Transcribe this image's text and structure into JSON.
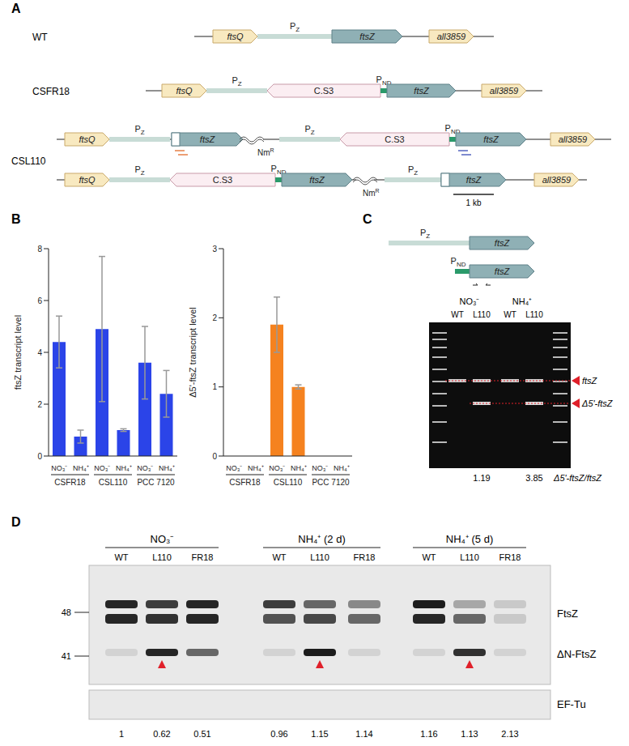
{
  "panels": {
    "A": {
      "label": "A",
      "rows": [
        "WT",
        "CSFR18",
        "CSL110"
      ],
      "genes": {
        "ftsQ": "ftsQ",
        "ftsZ": "ftsZ",
        "all3859": "all3859",
        "cs3": "C.S3",
        "nm": "Nm",
        "nm_sup": "R"
      },
      "promoters": {
        "p": "P",
        "pz_sub": "Z",
        "pnd_sub": "ND"
      },
      "scale": "1 kb"
    },
    "B": {
      "label": "B"
    },
    "C": {
      "label": "C",
      "gene": "ftsZ",
      "promoters": {
        "p": "P",
        "pz_sub": "Z",
        "pnd_sub": "ND"
      },
      "conditions": [
        "NO₃⁻",
        "NH₄⁺"
      ],
      "lanes": [
        "WT",
        "L110",
        "WT",
        "L110"
      ],
      "bands": [
        "ftsZ",
        "Δ5'-ftsZ"
      ],
      "ratios": [
        1.19,
        3.85
      ],
      "ratio_label": "Δ5'-ftsZ/ftsZ"
    },
    "D": {
      "label": "D",
      "conditions": [
        "NO₃⁻",
        "NH₄⁺ (2 d)",
        "NH₄⁺ (5 d)"
      ],
      "lanes": [
        "WT",
        "L110",
        "FR18"
      ],
      "markers": [
        48,
        41
      ],
      "bands": [
        "FtsZ",
        "ΔN-FtsZ"
      ],
      "loading": "EF-Tu",
      "ratios": [
        1,
        0.62,
        0.51,
        0.96,
        1.15,
        1.14,
        1.16,
        1.13,
        2.13
      ]
    }
  },
  "chart_data": [
    {
      "type": "bar",
      "ylabel": "ftsZ transcript level",
      "categories": [
        "NO₃⁻",
        "NH₄⁺",
        "NO₃⁻",
        "NH₄⁺",
        "NO₃⁻",
        "NH₄⁺"
      ],
      "groups": [
        "CSFR18",
        "CSL110",
        "PCC 7120"
      ],
      "values": [
        4.4,
        0.75,
        4.9,
        1.0,
        3.6,
        2.4
      ],
      "errors": [
        1.0,
        0.25,
        2.8,
        0.05,
        1.4,
        0.9
      ],
      "color": "#2b44e8",
      "ylim": [
        0,
        8
      ],
      "yticks": [
        0,
        2,
        4,
        6,
        8
      ]
    },
    {
      "type": "bar",
      "ylabel": "Δ5'-ftsZ transcript level",
      "categories": [
        "NO₃⁻",
        "NH₄⁺",
        "NO₃⁻",
        "NH₄⁺",
        "NO₃⁻",
        "NH₄⁺"
      ],
      "groups": [
        "CSFR18",
        "CSL110",
        "PCC 7120"
      ],
      "values": [
        0,
        0,
        1.9,
        1.0,
        0,
        0
      ],
      "errors": [
        0,
        0,
        0.4,
        0.03,
        0,
        0
      ],
      "color": "#f5821f",
      "ylim": [
        0,
        3
      ],
      "yticks": [
        0,
        1,
        2,
        3
      ]
    }
  ]
}
